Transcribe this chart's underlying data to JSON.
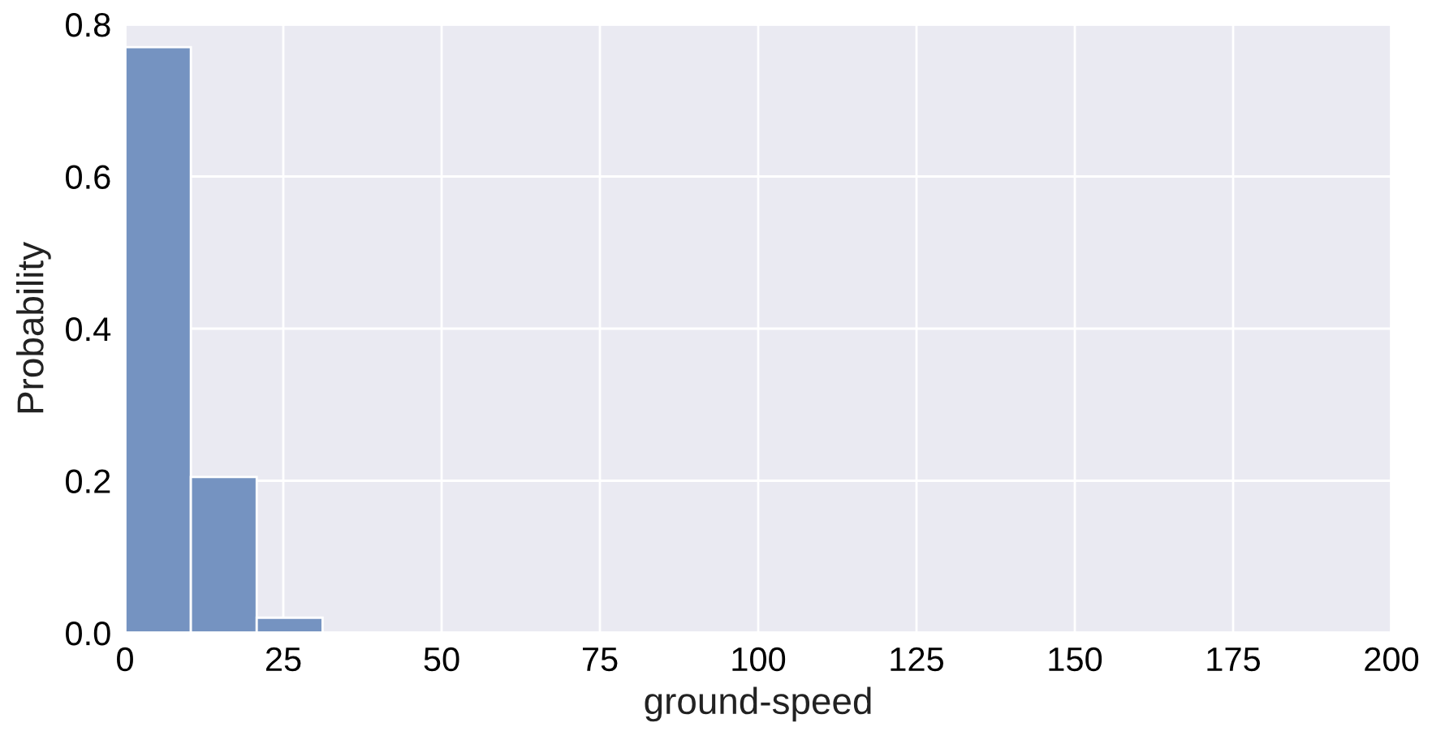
{
  "chart_data": {
    "type": "histogram",
    "xlabel": "ground-speed",
    "ylabel": "Probability",
    "bins": [
      0,
      10.4,
      20.8,
      31.2
    ],
    "values": [
      0.77,
      0.205,
      0.02
    ],
    "color": "#7593c1",
    "xlim": [
      0,
      200
    ],
    "xticks": [
      0,
      25,
      50,
      75,
      100,
      125,
      150,
      175,
      200
    ],
    "ylim": [
      0,
      0.8
    ],
    "yticks": [
      {
        "value": 0,
        "label": "0.0"
      },
      {
        "value": 0.2,
        "label": "0.2"
      },
      {
        "value": 0.4,
        "label": "0.4"
      },
      {
        "value": 0.6,
        "label": "0.6"
      },
      {
        "value": 0.8,
        "label": "0.8"
      }
    ],
    "grid": true
  }
}
